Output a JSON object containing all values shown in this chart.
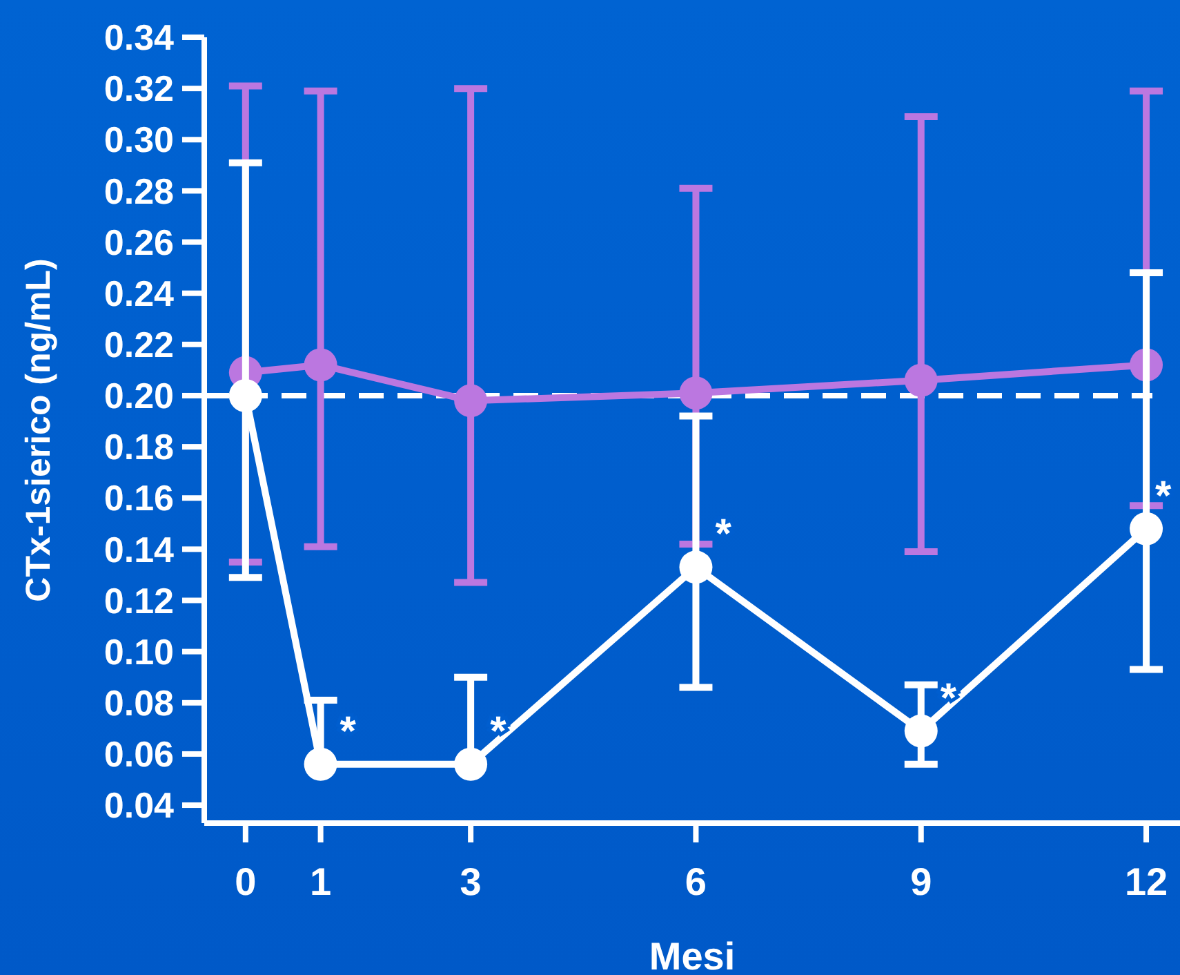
{
  "chart_data": {
    "type": "line",
    "xlabel": "Mesi",
    "ylabel": "CTx-1sierico (ng/mL)",
    "x": [
      0,
      1,
      3,
      6,
      9,
      12
    ],
    "xlim": [
      -0.55,
      12.45
    ],
    "xticks": [
      0,
      1,
      3,
      6,
      9,
      12
    ],
    "ylim": [
      0.033,
      0.34
    ],
    "yticks": [
      {
        "value": 0.04,
        "label": "0.04"
      },
      {
        "value": 0.06,
        "label": "0.06"
      },
      {
        "value": 0.08,
        "label": "0.08"
      },
      {
        "value": 0.1,
        "label": "0.10"
      },
      {
        "value": 0.12,
        "label": "0.12"
      },
      {
        "value": 0.14,
        "label": "0.14"
      },
      {
        "value": 0.16,
        "label": "0.16"
      },
      {
        "value": 0.18,
        "label": "0.18"
      },
      {
        "value": 0.2,
        "label": "0.20"
      },
      {
        "value": 0.22,
        "label": "0.22"
      },
      {
        "value": 0.24,
        "label": "0.24"
      },
      {
        "value": 0.26,
        "label": "0.26"
      },
      {
        "value": 0.28,
        "label": "0.28"
      },
      {
        "value": 0.3,
        "label": "0.30"
      },
      {
        "value": 0.32,
        "label": "0.32"
      },
      {
        "value": 0.34,
        "label": "0.34"
      }
    ],
    "grid": false,
    "marker": "circle",
    "line_style": "solid",
    "series": [
      {
        "color": "#bb77e0",
        "values": [
          0.209,
          0.212,
          0.198,
          0.201,
          0.206,
          0.212
        ],
        "errors": [
          [
            0.135,
            0.321
          ],
          [
            0.141,
            0.319
          ],
          [
            0.127,
            0.32
          ],
          [
            0.142,
            0.281
          ],
          [
            0.139,
            0.309
          ],
          [
            0.157,
            0.319
          ]
        ]
      },
      {
        "color": "#ffffff",
        "values": [
          0.2,
          0.056,
          0.056,
          0.133,
          0.069,
          0.148
        ],
        "errors": [
          [
            0.129,
            0.291
          ],
          [
            0.056,
            0.081
          ],
          [
            0.056,
            0.09
          ],
          [
            0.086,
            0.192
          ],
          [
            0.056,
            0.087
          ],
          [
            0.093,
            0.248
          ]
        ]
      }
    ],
    "ref_lines": [
      {
        "axis": "y",
        "value": 0.2,
        "color": "#ffffff",
        "line_style": "dashed"
      }
    ],
    "annotations": [
      {
        "text": "*",
        "x": 1,
        "y": 0.056
      },
      {
        "text": "*",
        "x": 3,
        "y": 0.056
      },
      {
        "text": "*",
        "x": 6,
        "y": 0.133
      },
      {
        "text": "*",
        "x": 9,
        "y": 0.069
      },
      {
        "text": "*",
        "x": 12,
        "y": 0.148
      }
    ]
  }
}
